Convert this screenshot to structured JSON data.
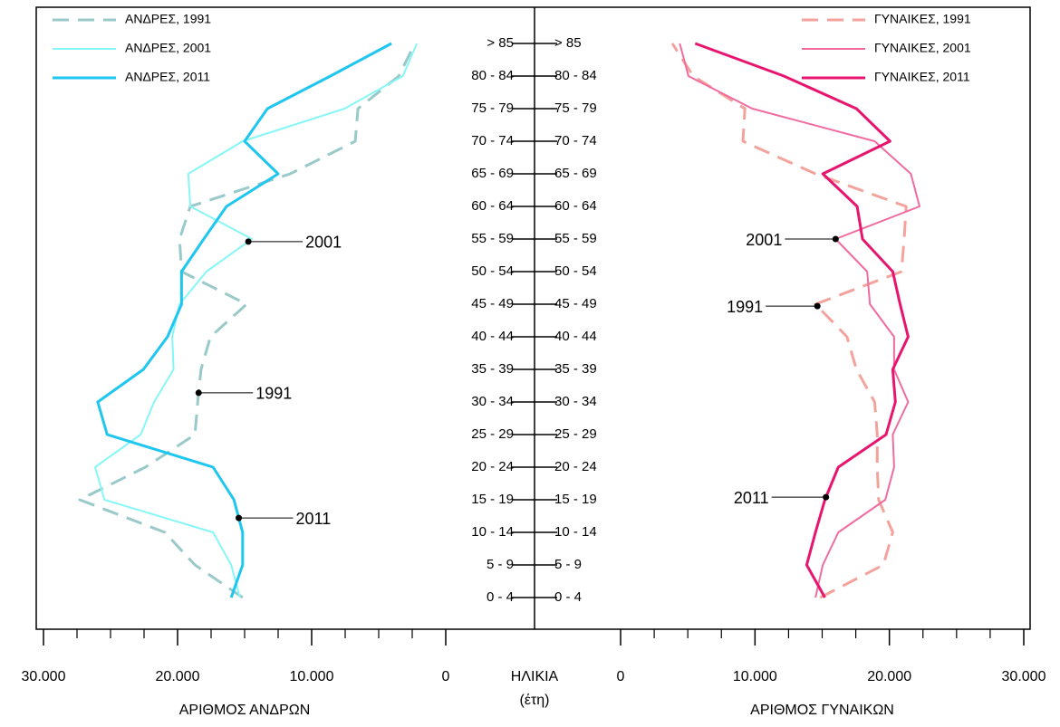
{
  "chart_data": [
    {
      "type": "line",
      "side": "left",
      "x_label": "ΑΡΙΘΜΟΣ ΑΝΔΡΩΝ",
      "y_label": "ΗΛΙΚΙΑ",
      "y_label_note": "(έτη)",
      "categories": [
        "0 - 4",
        "5 - 9",
        "10 - 14",
        "15 - 19",
        "20 - 24",
        "25 - 29",
        "30 - 34",
        "35 - 39",
        "40 - 44",
        "45 - 49",
        "50 - 54",
        "55 - 59",
        "60 - 64",
        "65 - 69",
        "70 - 74",
        "75 - 79",
        "80 - 84",
        "> 85"
      ],
      "xlim": [
        30000,
        0
      ],
      "xticks": [
        {
          "value": 30000,
          "label": "30.000"
        },
        {
          "value": 20000,
          "label": "20.000"
        },
        {
          "value": 10000,
          "label": "10.000"
        },
        0
      ],
      "minor_xticks": [
        27500,
        25000,
        22500,
        17500,
        15000,
        12500,
        7500,
        5000,
        2500
      ],
      "legend": "upper left",
      "series": [
        {
          "name": "ΑΝΔΡΕΣ, 1991",
          "color": "#99c9c9",
          "linestyle": "dashed",
          "values": [
            15150,
            18700,
            20950,
            27300,
            22400,
            18700,
            18500,
            18250,
            17550,
            14850,
            19700,
            19850,
            19050,
            11600,
            6750,
            6550,
            3500,
            2300
          ]
        },
        {
          "name": "ΑΝΔΡΕΣ, 2001",
          "color": "#86f6f6",
          "linestyle": "solid",
          "values": [
            15350,
            16000,
            17350,
            25450,
            26150,
            22750,
            21750,
            20300,
            20400,
            19850,
            17850,
            14450,
            19050,
            19200,
            15150,
            7550,
            3200,
            2150
          ]
        },
        {
          "name": "ΑΝΔΡΕΣ, 2011",
          "color": "#1ec6f0",
          "linestyle": "solid",
          "values": [
            16000,
            15150,
            15150,
            15800,
            17350,
            25250,
            25950,
            22550,
            20750,
            19700,
            19700,
            18050,
            16350,
            12500,
            15000,
            13300,
            8600,
            4050
          ]
        }
      ],
      "annotations": [
        "2001",
        "1991",
        "2011"
      ]
    },
    {
      "type": "line",
      "side": "right",
      "x_label": "ΑΡΙΘΜΟΣ ΓΥΝΑΙΚΩΝ",
      "categories": [
        "0 - 4",
        "5 - 9",
        "10 - 14",
        "15 - 19",
        "20 - 24",
        "25 - 29",
        "30 - 34",
        "35 - 39",
        "40 - 44",
        "45 - 49",
        "50 - 54",
        "55 - 59",
        "60 - 64",
        "65 - 69",
        "70 - 74",
        "75 - 79",
        "80 - 84",
        "> 85"
      ],
      "xlim": [
        0,
        30000
      ],
      "xticks": [
        0,
        {
          "value": 10000,
          "label": "10.000"
        },
        {
          "value": 20000,
          "label": "20.000"
        },
        {
          "value": 30000,
          "label": "30.000"
        }
      ],
      "minor_xticks": [
        2500,
        5000,
        7500,
        12500,
        15000,
        17500,
        22500,
        25000,
        27500
      ],
      "legend": "upper right",
      "series": [
        {
          "name": "ΓΥΝΑΙΚΕΣ, 1991",
          "color": "#f4a29c",
          "linestyle": "dashed",
          "values": [
            14850,
            19550,
            20250,
            19200,
            19100,
            19100,
            18900,
            17550,
            16850,
            14500,
            20900,
            21100,
            21250,
            14500,
            9100,
            9250,
            5400,
            3850
          ]
        },
        {
          "name": "ΓΥΝΑΙΚΕΣ, 2001",
          "color": "#f06ca0",
          "linestyle": "solid",
          "values": [
            14500,
            15050,
            16200,
            19700,
            20350,
            20250,
            21400,
            20350,
            20350,
            18550,
            18350,
            16000,
            22250,
            21600,
            18900,
            9800,
            5050,
            4400
          ]
        },
        {
          "name": "ΓΥΝΑΙΚΕΣ, 2011",
          "color": "#e8156e",
          "linestyle": "solid",
          "values": [
            15200,
            13850,
            14500,
            15200,
            16200,
            19750,
            20450,
            20250,
            21400,
            20800,
            20250,
            18000,
            17600,
            15050,
            20050,
            17550,
            12150,
            5550
          ]
        }
      ],
      "annotations": [
        "2001",
        "1991",
        "2011"
      ]
    }
  ]
}
